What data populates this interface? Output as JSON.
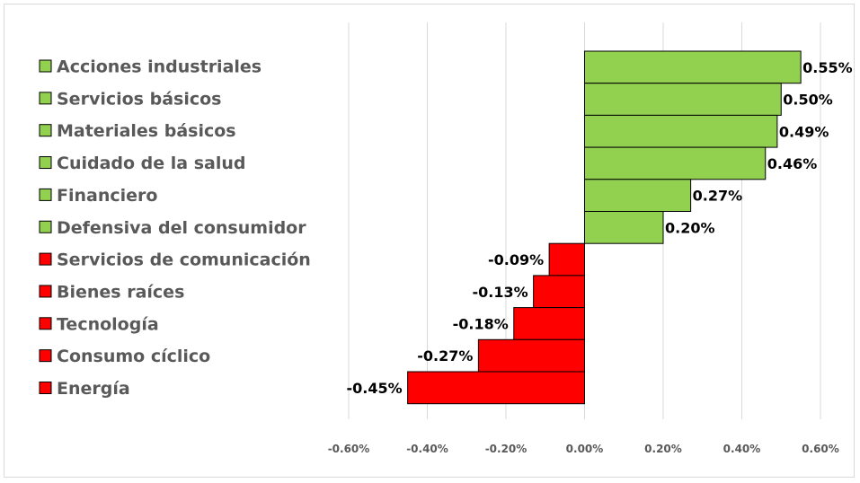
{
  "chart_data": {
    "type": "bar",
    "orientation": "horizontal",
    "title": "",
    "xlabel": "",
    "ylabel": "",
    "xlim": [
      -0.6,
      0.6
    ],
    "x_ticks": [
      -0.6,
      -0.4,
      -0.2,
      0.0,
      0.2,
      0.4,
      0.6
    ],
    "x_tick_labels": [
      "-0.60%",
      "-0.40%",
      "-0.20%",
      "0.00%",
      "0.20%",
      "0.40%",
      "0.60%"
    ],
    "grid": "vertical",
    "legend": "left",
    "positive_color": "#92d050",
    "negative_color": "#ff0000",
    "categories": [
      "Acciones industriales",
      "Servicios básicos",
      "Materiales básicos",
      "Cuidado de la salud",
      "Financiero",
      "Defensiva del consumidor",
      "Servicios de comunicación",
      "Bienes raíces",
      "Tecnología",
      "Consumo cíclico",
      "Energía"
    ],
    "values": [
      0.55,
      0.5,
      0.49,
      0.46,
      0.27,
      0.2,
      -0.09,
      -0.13,
      -0.18,
      -0.27,
      -0.45
    ],
    "value_labels": [
      "0.55%",
      "0.50%",
      "0.49%",
      "0.46%",
      "0.27%",
      "0.20%",
      "-0.09%",
      "-0.13%",
      "-0.18%",
      "-0.27%",
      "-0.45%"
    ]
  }
}
